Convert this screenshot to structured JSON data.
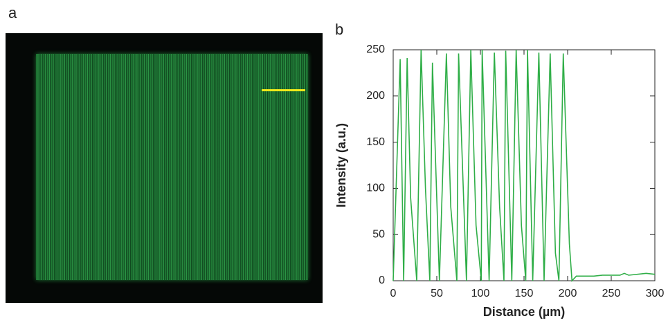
{
  "figure": {
    "panel_labels": [
      "a",
      "b"
    ]
  },
  "chart_data": {
    "type": "line",
    "xlabel": "Distance (µm)",
    "ylabel": "Intensity (a.u.)",
    "xlim": [
      0,
      300
    ],
    "ylim": [
      0,
      250
    ],
    "xticks": [
      0,
      50,
      100,
      150,
      200,
      250,
      300
    ],
    "yticks": [
      0,
      50,
      100,
      150,
      200,
      250
    ],
    "series": [
      {
        "color": "#2fae47",
        "x": [
          0,
          8,
          12,
          16,
          20,
          27,
          32,
          37,
          42,
          45,
          53,
          61,
          66,
          73,
          75,
          84,
          89,
          95,
          101,
          102,
          110,
          116,
          122,
          127,
          129,
          136,
          141,
          147,
          152,
          154,
          160,
          167,
          173,
          180,
          186,
          190,
          195,
          202,
          205,
          210,
          230,
          240,
          260,
          265,
          270,
          290,
          300
        ],
        "values": [
          0,
          240,
          0,
          241,
          90,
          0,
          250,
          100,
          0,
          236,
          0,
          246,
          80,
          0,
          246,
          0,
          250,
          60,
          0,
          250,
          0,
          247,
          80,
          0,
          249,
          0,
          250,
          60,
          0,
          250,
          0,
          247,
          0,
          246,
          30,
          0,
          246,
          40,
          0,
          5,
          5,
          6,
          6,
          8,
          6,
          8,
          7
        ]
      }
    ]
  }
}
